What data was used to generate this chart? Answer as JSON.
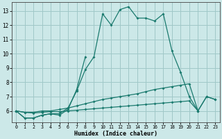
{
  "xlabel": "Humidex (Indice chaleur)",
  "bg_color": "#cce8e8",
  "grid_color": "#a0c8c8",
  "line_color": "#1a7a6e",
  "xlim": [
    -0.5,
    23.5
  ],
  "ylim": [
    5.2,
    13.6
  ],
  "yticks": [
    6,
    7,
    8,
    9,
    10,
    11,
    12,
    13
  ],
  "xticks": [
    0,
    1,
    2,
    3,
    4,
    5,
    6,
    7,
    8,
    9,
    10,
    11,
    12,
    13,
    14,
    15,
    16,
    17,
    18,
    19,
    20,
    21,
    22,
    23
  ],
  "series": [
    {
      "x": [
        0,
        1,
        2,
        3,
        4,
        5,
        6,
        7,
        8,
        9,
        10,
        11,
        12,
        13,
        14,
        15,
        16,
        17,
        18,
        19,
        20,
        21
      ],
      "y": [
        6.0,
        5.5,
        5.5,
        5.7,
        5.8,
        5.8,
        6.2,
        7.4,
        8.9,
        9.8,
        12.8,
        12.0,
        13.1,
        13.3,
        12.5,
        12.5,
        12.3,
        12.8,
        10.2,
        8.7,
        7.0,
        6.0
      ]
    },
    {
      "x": [
        0,
        1,
        2,
        3,
        4,
        5,
        6,
        7,
        8
      ],
      "y": [
        6.0,
        5.5,
        5.5,
        5.7,
        5.8,
        5.7,
        6.1,
        7.5,
        9.8
      ]
    },
    {
      "x": [
        0,
        1,
        2,
        3,
        4,
        5,
        6,
        7,
        8,
        9,
        10,
        11,
        12,
        13,
        14,
        15,
        16,
        17,
        18,
        19,
        20,
        21,
        22,
        23
      ],
      "y": [
        6.0,
        5.9,
        5.9,
        6.0,
        6.0,
        6.1,
        6.2,
        6.35,
        6.5,
        6.65,
        6.8,
        6.9,
        7.0,
        7.1,
        7.2,
        7.35,
        7.5,
        7.6,
        7.7,
        7.8,
        7.9,
        6.0,
        7.0,
        6.8
      ]
    },
    {
      "x": [
        0,
        1,
        2,
        3,
        4,
        5,
        6,
        7,
        8,
        9,
        10,
        11,
        12,
        13,
        14,
        15,
        16,
        17,
        18,
        19,
        20,
        21,
        22,
        23
      ],
      "y": [
        6.0,
        5.9,
        5.85,
        5.9,
        5.95,
        5.95,
        6.0,
        6.05,
        6.1,
        6.15,
        6.2,
        6.25,
        6.3,
        6.35,
        6.4,
        6.45,
        6.5,
        6.55,
        6.6,
        6.65,
        6.7,
        6.0,
        7.0,
        6.8
      ]
    }
  ]
}
